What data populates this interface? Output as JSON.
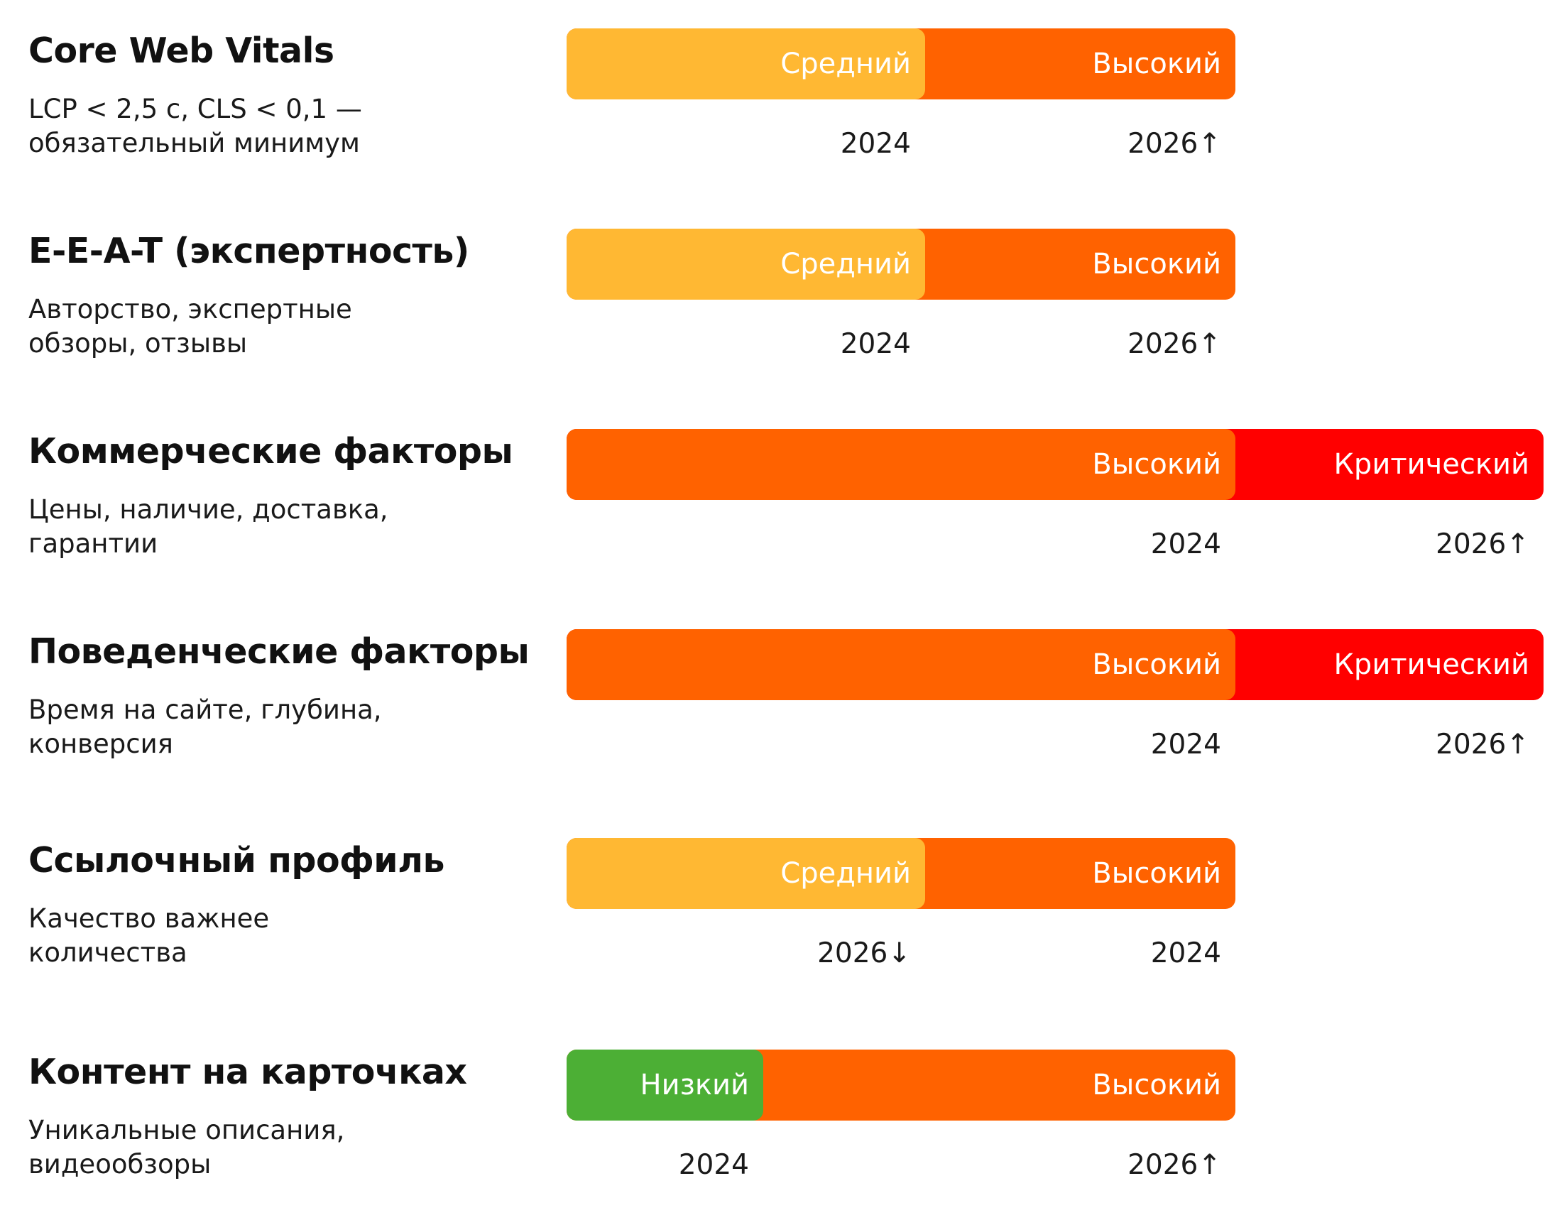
{
  "chart_data": {
    "type": "bar",
    "scale": [
      "Низкий",
      "Средний",
      "Высокий",
      "Критический"
    ],
    "colors": {
      "Низкий": "#4CAF35",
      "Средний": "#FFB833",
      "Высокий": "#FF6200",
      "Критический": "#FF0000"
    },
    "rows": [
      {
        "title": "Core Web Vitals",
        "subtitle": [
          "LCP < 2,5 с, CLS < 0,1 —",
          "обязательный минимум"
        ],
        "from": "Средний",
        "to": "Высокий",
        "marks": [
          {
            "level": "Средний",
            "year": "2024"
          },
          {
            "level": "Высокий",
            "year": "2026↑"
          }
        ]
      },
      {
        "title": "E-E-A-T (экспертность)",
        "subtitle": [
          "Авторство, экспертные",
          "обзоры, отзывы"
        ],
        "from": "Средний",
        "to": "Высокий",
        "marks": [
          {
            "level": "Средний",
            "year": "2024"
          },
          {
            "level": "Высокий",
            "year": "2026↑"
          }
        ]
      },
      {
        "title": "Коммерческие факторы",
        "subtitle": [
          "Цены, наличие, доставка,",
          "гарантии"
        ],
        "from": "Высокий",
        "to": "Критический",
        "marks": [
          {
            "level": "Высокий",
            "year": "2024"
          },
          {
            "level": "Критический",
            "year": "2026↑"
          }
        ]
      },
      {
        "title": "Поведенческие факторы",
        "subtitle": [
          "Время на сайте, глубина,",
          "конверсия"
        ],
        "from": "Высокий",
        "to": "Критический",
        "marks": [
          {
            "level": "Высокий",
            "year": "2024"
          },
          {
            "level": "Критический",
            "year": "2026↑"
          }
        ]
      },
      {
        "title": "Ссылочный профиль",
        "subtitle": [
          "Качество важнее",
          "количества"
        ],
        "from": "Средний",
        "to": "Высокий",
        "marks": [
          {
            "level": "Средний",
            "year": "2026↓"
          },
          {
            "level": "Высокий",
            "year": "2024"
          }
        ]
      },
      {
        "title": "Контент на карточках",
        "subtitle": [
          "Уникальные описания,",
          "видеообзоры"
        ],
        "from": "Низкий",
        "to": "Высокий",
        "marks": [
          {
            "level": "Низкий",
            "year": "2024"
          },
          {
            "level": "Высокий",
            "year": "2026↑"
          }
        ]
      }
    ]
  }
}
